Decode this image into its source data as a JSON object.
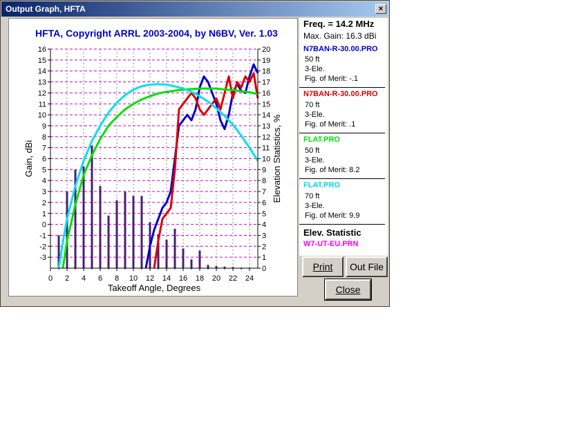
{
  "window": {
    "title": "Output Graph, HFTA",
    "close_glyph": "×"
  },
  "chart_data": {
    "type": "line",
    "title": "HFTA, Copyright ARRL 2003-2004, by N6BV, Ver. 1.03",
    "xlabel": "Takeoff Angle, Degrees",
    "ylabel": "Gain, dBi",
    "y2label": "Elevation Statistics, %",
    "xlim": [
      0,
      25
    ],
    "ylim": [
      -4,
      16
    ],
    "y2lim": [
      0,
      20
    ],
    "xticks": [
      "0",
      "2",
      "4",
      "6",
      "8",
      "10",
      "12",
      "14",
      "16",
      "18",
      "20",
      "22",
      "24"
    ],
    "yticks": [
      "16",
      "15",
      "14",
      "13",
      "12",
      "11",
      "10",
      "9",
      "8",
      "7",
      "6",
      "5",
      "4",
      "3",
      "2",
      "1",
      "0",
      "-1",
      "-2",
      "-3"
    ],
    "y2ticks": [
      "20",
      "19",
      "18",
      "17",
      "16",
      "15",
      "14",
      "13",
      "12",
      "11",
      "10",
      "9",
      "8",
      "7",
      "6",
      "5",
      "4",
      "3",
      "2",
      "1",
      "0"
    ],
    "grid": true,
    "series": [
      {
        "name": "N7BAN-R-30.00.PRO",
        "color": "#0000cc",
        "x": [
          11.5,
          12,
          12.5,
          13,
          13.5,
          14,
          14.5,
          15,
          15.5,
          16,
          16.5,
          17,
          17.5,
          18,
          18.5,
          19,
          19.5,
          20,
          20.5,
          21,
          21.5,
          22,
          22.5,
          23,
          23.5,
          24,
          24.5,
          25
        ],
        "y": [
          -4,
          -2,
          -0.5,
          0.5,
          1.5,
          2,
          3,
          6,
          9,
          9.5,
          10,
          9.5,
          10.5,
          12.5,
          13.5,
          13,
          12,
          11,
          9.5,
          8.7,
          10,
          12,
          12.8,
          12.2,
          12,
          13.5,
          14.6,
          13.8
        ]
      },
      {
        "name": "N7BAN-R-30.00.PRO",
        "color": "#dd0000",
        "x": [
          12.5,
          13,
          13.5,
          14,
          14.5,
          15,
          15.5,
          16,
          16.5,
          17,
          17.5,
          18,
          18.5,
          19,
          19.5,
          20,
          20.5,
          21,
          21.5,
          22,
          22.5,
          23,
          23.5,
          24,
          24.5,
          25
        ],
        "y": [
          -4,
          -1.5,
          0.5,
          1,
          1.5,
          5,
          10.5,
          11,
          11.5,
          12,
          11.5,
          10.5,
          10,
          10.5,
          11,
          11.5,
          10.5,
          12,
          13.5,
          11.5,
          13,
          12.5,
          13.5,
          13,
          13.8,
          11.5
        ]
      },
      {
        "name": "FLAT.PRO",
        "color": "#00e000",
        "x": [
          1.5,
          2,
          3,
          4,
          5,
          6,
          7,
          8,
          9,
          10,
          11,
          12,
          13,
          14,
          15,
          16,
          17,
          18,
          19,
          20,
          21,
          22,
          23,
          24,
          25
        ],
        "y": [
          -4,
          -1.5,
          1.8,
          4.5,
          6.3,
          7.8,
          9,
          9.8,
          10.5,
          11,
          11.4,
          11.7,
          11.95,
          12.1,
          12.2,
          12.3,
          12.35,
          12.4,
          12.4,
          12.4,
          12.3,
          12.25,
          12.15,
          12.05,
          11.9
        ]
      },
      {
        "name": "FLAT.PRO",
        "color": "#00e0f0",
        "x": [
          1,
          1.5,
          2,
          3,
          4,
          5,
          6,
          7,
          8,
          9,
          10,
          11,
          12,
          13,
          14,
          15,
          16,
          17,
          18,
          19,
          20,
          21,
          22,
          23,
          24,
          25
        ],
        "y": [
          -4,
          -1.6,
          0.5,
          3.5,
          5.8,
          7.6,
          9,
          10.2,
          11.1,
          11.8,
          12.3,
          12.6,
          12.75,
          12.8,
          12.75,
          12.6,
          12.4,
          12.1,
          11.7,
          11.2,
          10.6,
          9.9,
          9.1,
          8.1,
          7,
          5.8
        ]
      }
    ],
    "bars": {
      "name": "W7-UT-EU.PRN",
      "color": "#4b1e6e",
      "x": [
        1,
        2,
        3,
        4,
        5,
        6,
        7,
        8,
        9,
        10,
        11,
        12,
        13,
        14,
        15,
        16,
        17,
        18,
        19,
        20,
        21,
        22,
        23,
        24
      ],
      "values": [
        3,
        7,
        9,
        9.3,
        11.2,
        7.5,
        4.8,
        6.2,
        7,
        6.6,
        6.6,
        4.2,
        3.1,
        2.6,
        3.6,
        1.8,
        0.8,
        1.6,
        0.3,
        0.2,
        0.15,
        0.1,
        0.05,
        0.05
      ]
    }
  },
  "side": {
    "freq": "Freq. = 14.2 MHz",
    "max_gain": "Max. Gain: 16.3 dBi",
    "entries": [
      {
        "name": "N7BAN-R-30.00.PRO",
        "color": "#0000cc",
        "line1": "50 ft",
        "line2": "3-Ele.",
        "line3": "Fig. of Merit: -.1"
      },
      {
        "name": "N7BAN-R-30.00.PRO",
        "color": "#dd0000",
        "line1": "70 ft",
        "line2": "3-Ele.",
        "line3": "Fig. of Merit:  .1"
      },
      {
        "name": "FLAT.PRO",
        "color": "#00dd00",
        "line1": "50 ft",
        "line2": "3-Ele.",
        "line3": "Fig. of Merit:  8.2"
      },
      {
        "name": "FLAT.PRO",
        "color": "#00d8f0",
        "line1": "70 ft",
        "line2": "3-Ele.",
        "line3": "Fig. of Merit:  9.9"
      }
    ],
    "elev_heading": "Elev. Statistic",
    "elev_file": "W7-UT-EU.PRN"
  },
  "buttons": {
    "print": "Print",
    "outfile": "Out File",
    "close": "Close"
  }
}
